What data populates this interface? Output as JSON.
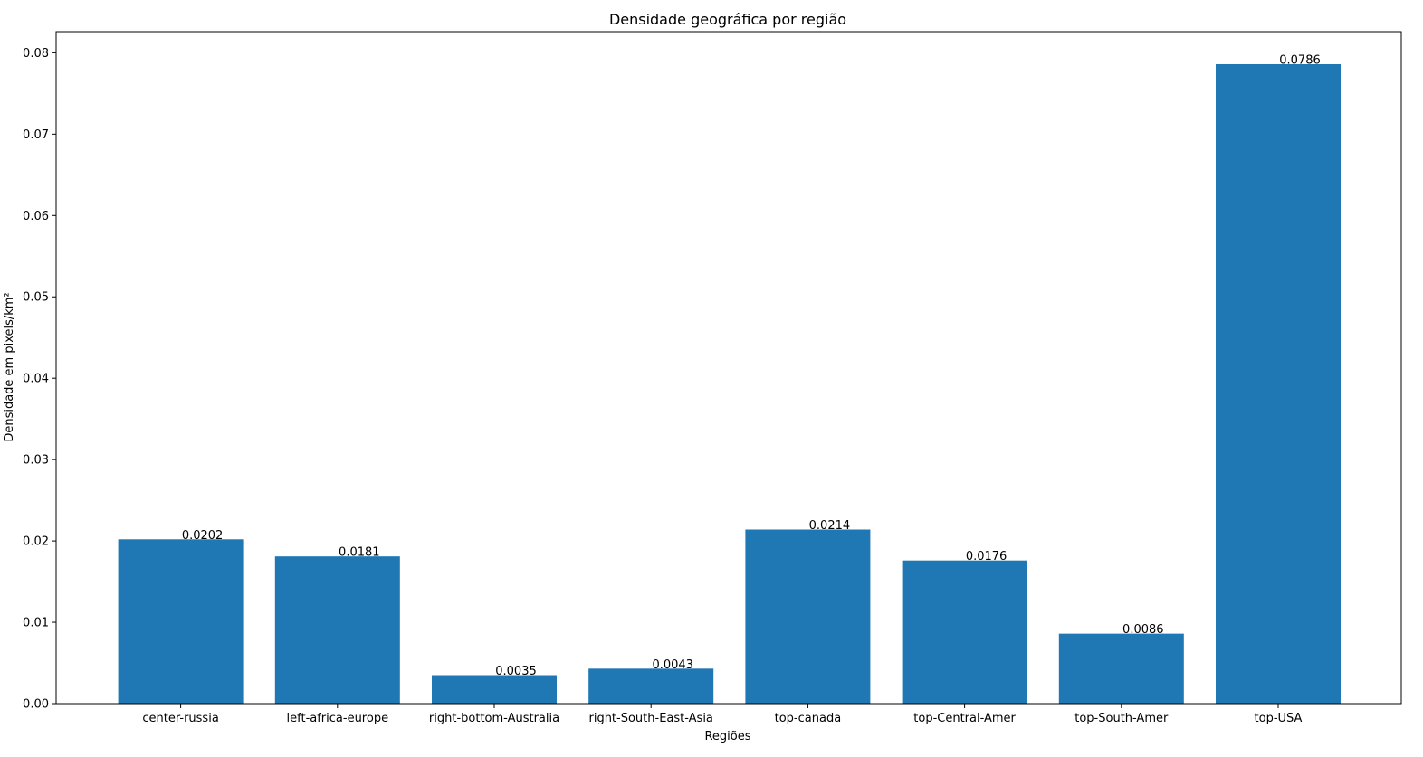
{
  "chart_data": {
    "type": "bar",
    "title": "Densidade geográfica por região",
    "xlabel": "Regiões",
    "ylabel": "Densidade em pixels/km²",
    "categories": [
      "center-russia",
      "left-africa-europe",
      "right-bottom-Australia",
      "right-South-East-Asia",
      "top-canada",
      "top-Central-Amer",
      "top-South-Amer",
      "top-USA"
    ],
    "values": [
      0.0202,
      0.0181,
      0.0035,
      0.0043,
      0.0214,
      0.0176,
      0.0086,
      0.0786
    ],
    "value_labels": [
      "0.0202",
      "0.0181",
      "0.0035",
      "0.0043",
      "0.0214",
      "0.0176",
      "0.0086",
      "0.0786"
    ],
    "ylim": [
      0,
      0.0826
    ],
    "yticks": [
      0.0,
      0.01,
      0.02,
      0.03,
      0.04,
      0.05,
      0.06,
      0.07,
      0.08
    ],
    "ytick_labels": [
      "0.00",
      "0.01",
      "0.02",
      "0.03",
      "0.04",
      "0.05",
      "0.06",
      "0.07",
      "0.08"
    ],
    "grid": false,
    "bar_color": "#1f77b4"
  }
}
